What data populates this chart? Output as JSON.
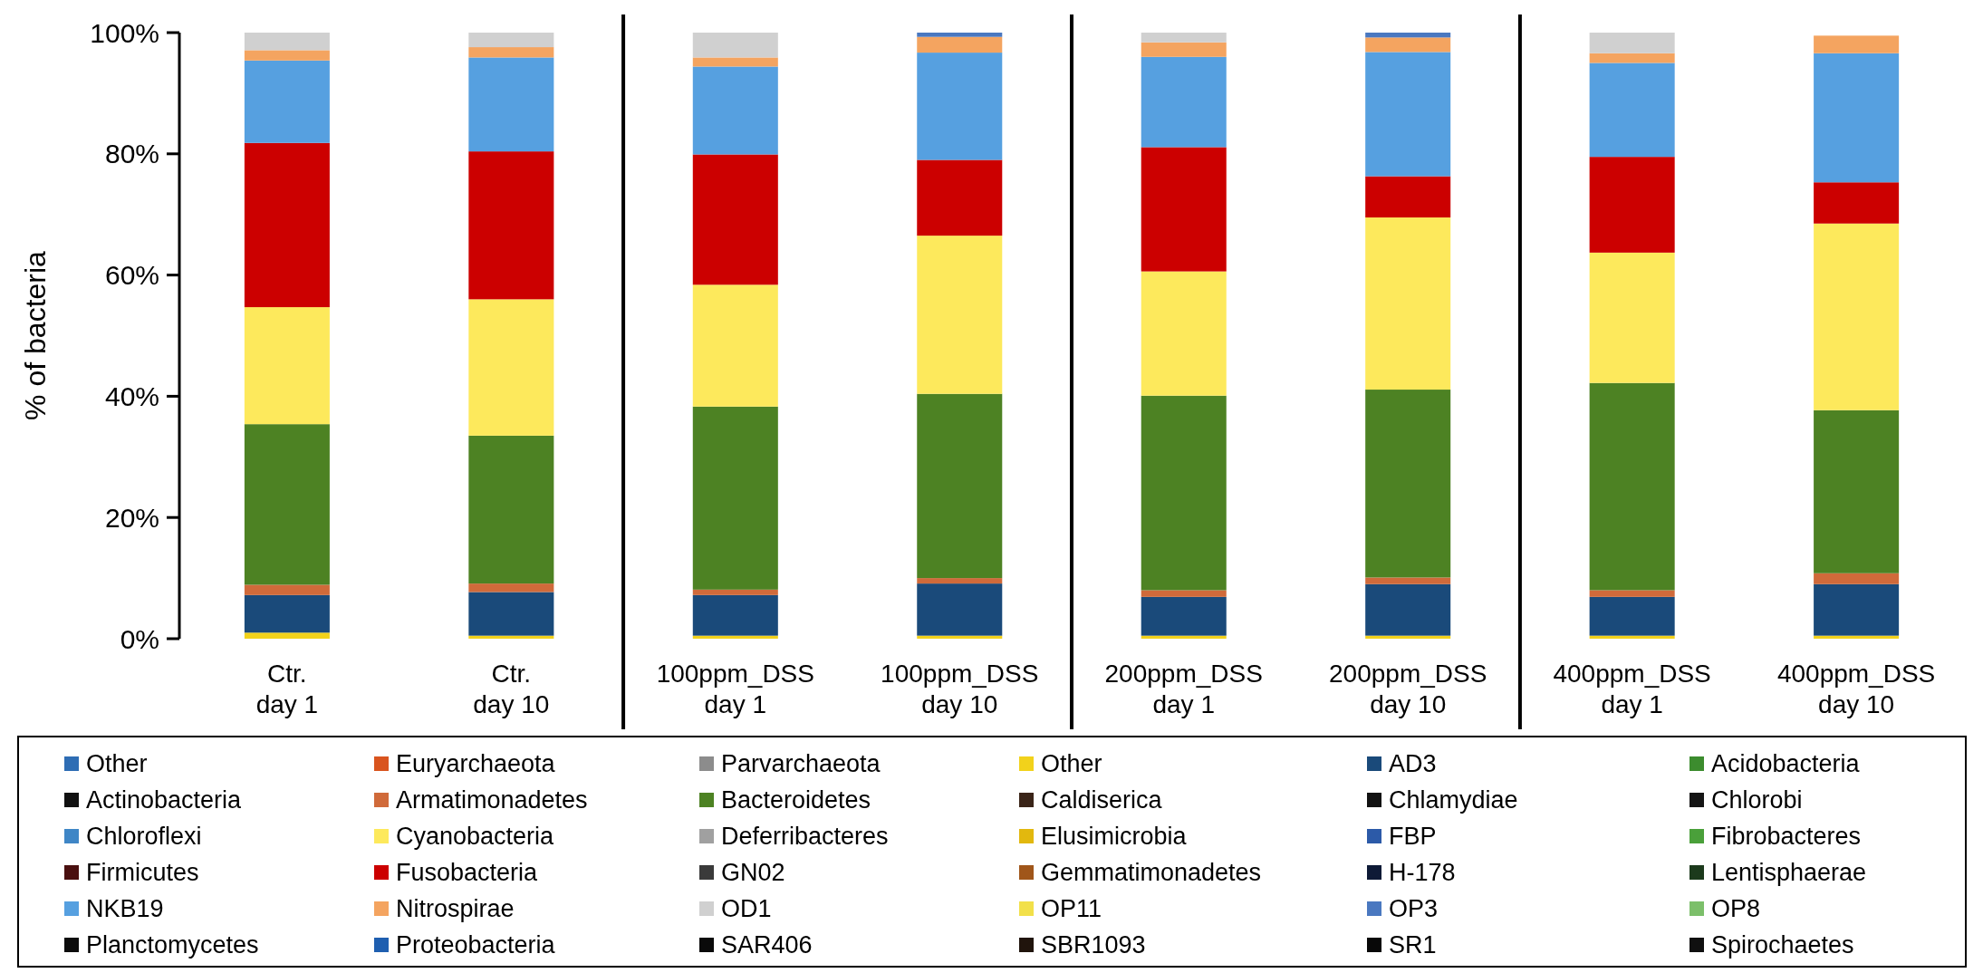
{
  "chart_data": {
    "type": "bar",
    "stacked": true,
    "ylabel": "% of bacteria",
    "categories": [
      "Ctr.\nday 1",
      "Ctr.\nday 10",
      "100ppm_DSS\nday 1",
      "100ppm_DSS\nday 10",
      "200ppm_DSS\nday 1",
      "200ppm_DSS\nday 10",
      "400ppm_DSS\nday 1",
      "400ppm_DSS\nday 10"
    ],
    "ylim": [
      0,
      100
    ],
    "yticks": [
      {
        "value": 0,
        "label": "0%"
      },
      {
        "value": 20,
        "label": "20%"
      },
      {
        "value": 40,
        "label": "40%"
      },
      {
        "value": 60,
        "label": "60%"
      },
      {
        "value": 80,
        "label": "80%"
      },
      {
        "value": 100,
        "label": "100%"
      }
    ],
    "grid": false,
    "legend": "bottom",
    "series": [
      {
        "name": "Other",
        "color": "#2e6db4",
        "values": [
          0,
          0,
          0,
          0,
          0,
          0,
          0,
          0
        ]
      },
      {
        "name": "Euryarchaeota",
        "color": "#d9541e",
        "values": [
          0,
          0,
          0,
          0,
          0,
          0,
          0,
          0
        ]
      },
      {
        "name": "Parvarchaeota",
        "color": "#8c8c8c",
        "values": [
          0,
          0,
          0,
          0,
          0,
          0,
          0,
          0
        ]
      },
      {
        "name": "Other",
        "color": "#f2d21b",
        "values": [
          1,
          0.5,
          0.5,
          0.5,
          0.5,
          0.5,
          0.5,
          0.5
        ]
      },
      {
        "name": "AD3",
        "color": "#1a4a7a",
        "values": [
          6.2,
          7.2,
          6.7,
          8.6,
          6.4,
          8.5,
          6.4,
          8.5
        ]
      },
      {
        "name": "Acidobacteria",
        "color": "#3c8c2e",
        "values": [
          0,
          0,
          0,
          0,
          0,
          0,
          0,
          0
        ]
      },
      {
        "name": "Actinobacteria",
        "color": "#111111",
        "values": [
          0,
          0,
          0,
          0,
          0,
          0,
          0,
          0
        ]
      },
      {
        "name": "Armatimonadetes",
        "color": "#d06a3a",
        "values": [
          1.7,
          1.4,
          0.9,
          0.9,
          1.1,
          1.1,
          1.1,
          1.8
        ]
      },
      {
        "name": "Bacteroidetes",
        "color": "#4d8223",
        "values": [
          26.5,
          24.4,
          30.2,
          30.4,
          32.1,
          31,
          34.2,
          26.9
        ]
      },
      {
        "name": "Caldiserica",
        "color": "#3a2418",
        "values": [
          0,
          0,
          0,
          0,
          0,
          0,
          0,
          0
        ]
      },
      {
        "name": "Chlamydiae",
        "color": "#121212",
        "values": [
          0,
          0,
          0,
          0,
          0,
          0,
          0,
          0
        ]
      },
      {
        "name": "Chlorobi",
        "color": "#151515",
        "values": [
          0,
          0,
          0,
          0,
          0,
          0,
          0,
          0
        ]
      },
      {
        "name": "Chloroflexi",
        "color": "#3f86c6",
        "values": [
          0,
          0,
          0,
          0,
          0,
          0,
          0,
          0
        ]
      },
      {
        "name": "Cyanobacteria",
        "color": "#fde95c",
        "values": [
          19.3,
          22.5,
          20.1,
          26.1,
          20.5,
          28.4,
          21.5,
          30.8
        ]
      },
      {
        "name": "Deferribacteres",
        "color": "#a0a0a0",
        "values": [
          0,
          0,
          0,
          0,
          0,
          0,
          0,
          0
        ]
      },
      {
        "name": "Elusimicrobia",
        "color": "#e2b80e",
        "values": [
          0,
          0,
          0,
          0,
          0,
          0,
          0,
          0
        ]
      },
      {
        "name": "FBP",
        "color": "#2c5aa8",
        "values": [
          0,
          0,
          0,
          0,
          0,
          0,
          0,
          0
        ]
      },
      {
        "name": "Fibrobacteres",
        "color": "#4aa03a",
        "values": [
          0,
          0,
          0,
          0,
          0,
          0,
          0,
          0
        ]
      },
      {
        "name": "Firmicutes",
        "color": "#4a1010",
        "values": [
          0,
          0,
          0,
          0,
          0,
          0,
          0,
          0
        ]
      },
      {
        "name": "Fusobacteria",
        "color": "#cc0000",
        "values": [
          27.1,
          24.4,
          21.5,
          12.5,
          20.5,
          6.8,
          15.8,
          6.8
        ]
      },
      {
        "name": "GN02",
        "color": "#3a3a3a",
        "values": [
          0,
          0,
          0,
          0,
          0,
          0,
          0,
          0
        ]
      },
      {
        "name": "Gemmatimonadetes",
        "color": "#a0561a",
        "values": [
          0,
          0,
          0,
          0,
          0,
          0,
          0,
          0
        ]
      },
      {
        "name": "H-178",
        "color": "#0e1a36",
        "values": [
          0,
          0,
          0,
          0,
          0,
          0,
          0,
          0
        ]
      },
      {
        "name": "Lentisphaerae",
        "color": "#1c3a1c",
        "values": [
          0,
          0,
          0,
          0,
          0,
          0,
          0,
          0
        ]
      },
      {
        "name": "NKB19",
        "color": "#56a0e0",
        "values": [
          13.6,
          15.5,
          14.5,
          17.7,
          14.9,
          20.5,
          15.5,
          21.3
        ]
      },
      {
        "name": "Nitrospirae",
        "color": "#f4a460",
        "values": [
          1.7,
          1.7,
          1.5,
          2.6,
          2.4,
          2.4,
          1.6,
          2.9
        ]
      },
      {
        "name": "OD1",
        "color": "#d0d0d0",
        "values": [
          2.9,
          2.4,
          4.1,
          0,
          1.6,
          0,
          3.4,
          0
        ]
      },
      {
        "name": "OP11",
        "color": "#f2e04a",
        "values": [
          0,
          0,
          0,
          0,
          0,
          0,
          0,
          0
        ]
      },
      {
        "name": "OP3",
        "color": "#4a78c0",
        "values": [
          0,
          0,
          0,
          0.7,
          0,
          0.8,
          0,
          0
        ]
      },
      {
        "name": "OP8",
        "color": "#7cbf6a",
        "values": [
          0,
          0,
          0,
          0,
          0,
          0,
          0,
          0
        ]
      },
      {
        "name": "Planctomycetes",
        "color": "#0c0c0c",
        "values": [
          0,
          0,
          0,
          0,
          0,
          0,
          0,
          0
        ]
      },
      {
        "name": "Proteobacteria",
        "color": "#1f5fb0",
        "values": [
          0,
          0,
          0,
          0,
          0,
          0,
          0,
          0
        ]
      },
      {
        "name": "SAR406",
        "color": "#0a0a0a",
        "values": [
          0,
          0,
          0,
          0,
          0,
          0,
          0,
          0
        ]
      },
      {
        "name": "SBR1093",
        "color": "#20140c",
        "values": [
          0,
          0,
          0,
          0,
          0,
          0,
          0,
          0
        ]
      },
      {
        "name": "SR1",
        "color": "#080808",
        "values": [
          0,
          0,
          0,
          0,
          0,
          0,
          0,
          0
        ]
      },
      {
        "name": "Spirochaetes",
        "color": "#101010",
        "values": [
          0,
          0,
          0,
          0,
          0,
          0,
          0,
          0
        ]
      }
    ]
  }
}
